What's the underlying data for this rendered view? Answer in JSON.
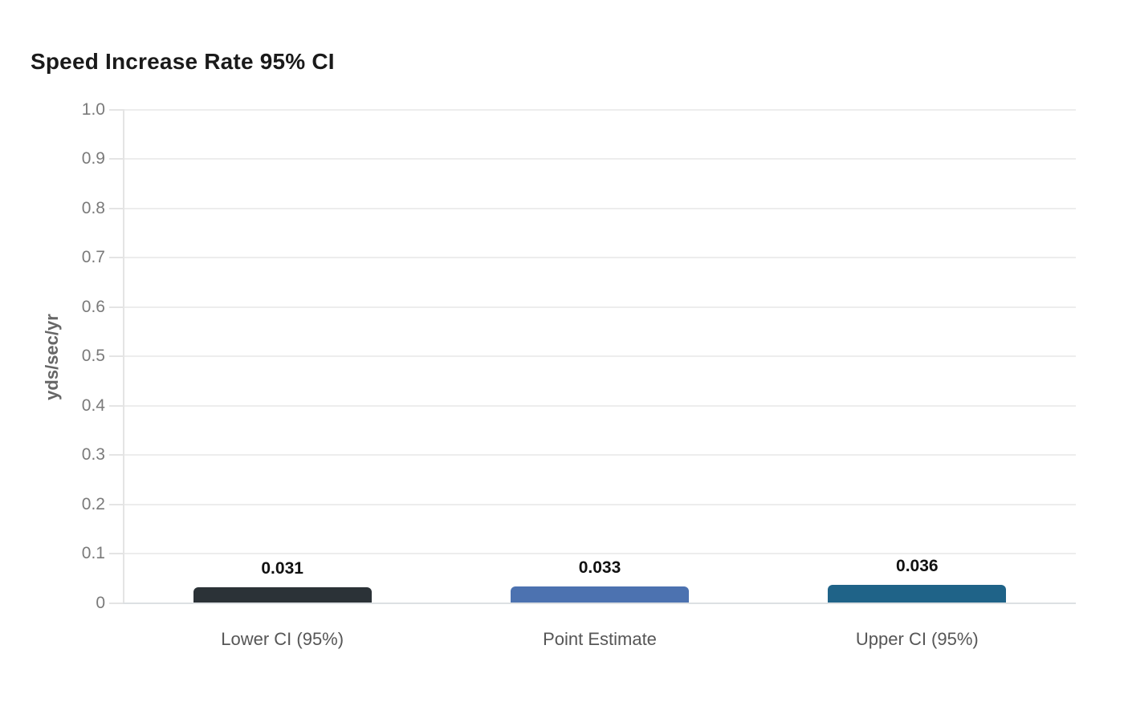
{
  "chart_data": {
    "type": "bar",
    "title": "Speed Increase Rate 95% CI",
    "xlabel": "",
    "ylabel": "yds/sec/yr",
    "categories": [
      "Lower CI (95%)",
      "Point Estimate",
      "Upper CI (95%)"
    ],
    "values": [
      0.031,
      0.033,
      0.036
    ],
    "value_labels": [
      "0.031",
      "0.033",
      "0.036"
    ],
    "bar_colors": [
      "#2b3237",
      "#4c72b0",
      "#1f6388"
    ],
    "ylim": [
      0,
      1.0
    ],
    "y_ticks": [
      0,
      0.1,
      0.2,
      0.3,
      0.4,
      0.5,
      0.6,
      0.7,
      0.8,
      0.9,
      1.0
    ],
    "y_tick_labels": [
      "0",
      "0.1",
      "0.2",
      "0.3",
      "0.4",
      "0.5",
      "0.6",
      "0.7",
      "0.8",
      "0.9",
      "1.0"
    ],
    "grid": true,
    "legend": false
  },
  "colors": {
    "background": "#ffffff",
    "grid": "#ededed",
    "axis_line": "#e4e4e4",
    "baseline": "#dde0e3",
    "tick_label": "#7a7a7a",
    "category_label": "#565656",
    "value_label": "#111111",
    "title": "#1a1a1a",
    "ylabel": "#666666"
  }
}
